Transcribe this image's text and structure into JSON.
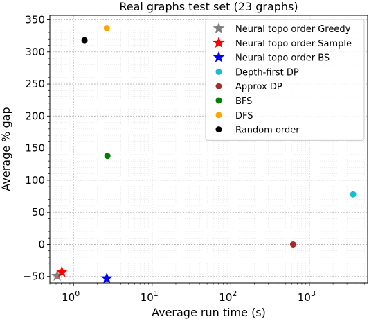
{
  "chart_data": {
    "type": "scatter",
    "title": "Real graphs test set (23 graphs)",
    "xlabel": "Average run time (s)",
    "ylabel": "Average % gap",
    "xscale": "log",
    "xlim": [
      0.5,
      5500
    ],
    "ylim": [
      -60,
      357
    ],
    "grid": {
      "major": true,
      "minor": true
    },
    "x_ticks": [
      {
        "base": "10",
        "exp": "0"
      },
      {
        "base": "10",
        "exp": "1"
      },
      {
        "base": "10",
        "exp": "2"
      },
      {
        "base": "10",
        "exp": "3"
      }
    ],
    "y_ticks": [
      "350",
      "300",
      "250",
      "200",
      "150",
      "100",
      "50",
      "0",
      "−50"
    ],
    "legend_position": "top-right",
    "series": [
      {
        "name": "Neural topo order Greedy",
        "marker": "star",
        "color": "#808080",
        "x": 0.62,
        "y": -49
      },
      {
        "name": "Neural topo order Sample",
        "marker": "star",
        "color": "#ff0000",
        "x": 0.71,
        "y": -43
      },
      {
        "name": "Neural topo order BS",
        "marker": "star",
        "color": "#0000ff",
        "x": 2.65,
        "y": -53
      },
      {
        "name": "Depth-first DP",
        "marker": "circle",
        "color": "#17becf",
        "x": 3600,
        "y": 78
      },
      {
        "name": "Approx DP",
        "marker": "circle",
        "color": "#a52a2a",
        "x": 620,
        "y": 0
      },
      {
        "name": "BFS",
        "marker": "circle",
        "color": "#008000",
        "x": 2.7,
        "y": 138
      },
      {
        "name": "DFS",
        "marker": "circle",
        "color": "#ffa500",
        "x": 2.65,
        "y": 337
      },
      {
        "name": "Random order",
        "marker": "circle",
        "color": "#000000",
        "x": 1.38,
        "y": 318
      }
    ]
  }
}
